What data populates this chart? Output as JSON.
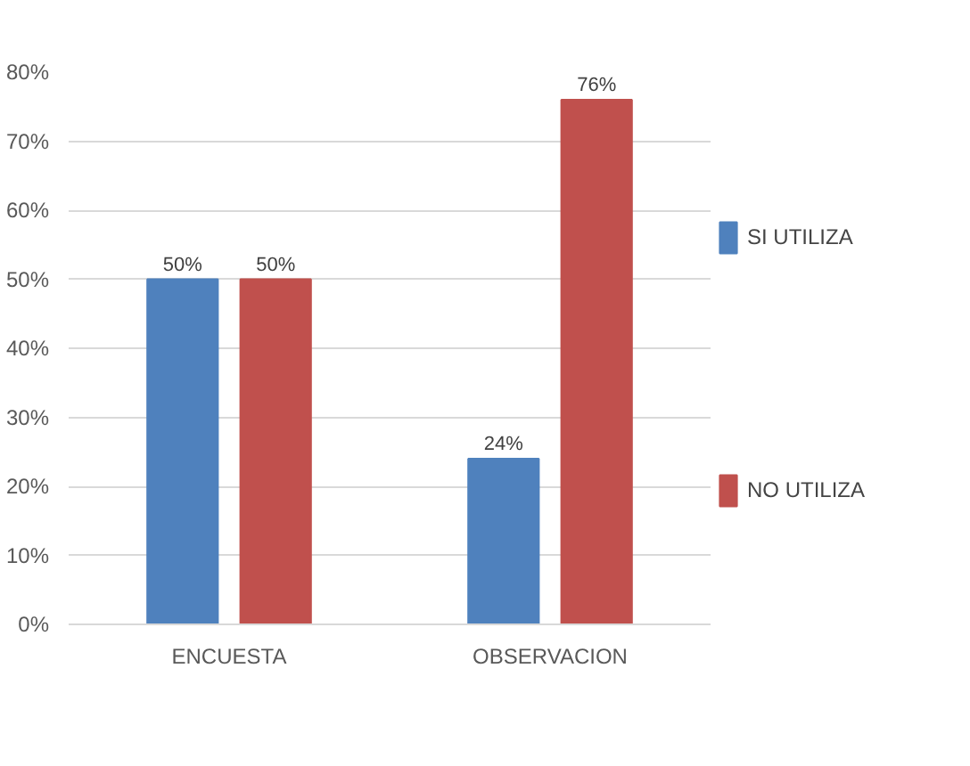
{
  "chart_data": {
    "type": "bar",
    "categories": [
      "ENCUESTA",
      "OBSERVACION"
    ],
    "series": [
      {
        "name": "SI UTILIZA",
        "color": "#4f81bd",
        "values": [
          50,
          24
        ],
        "value_labels": [
          "50%",
          "24%"
        ]
      },
      {
        "name": "NO UTILIZA",
        "color": "#c0504d",
        "values": [
          50,
          76
        ],
        "value_labels": [
          "50%",
          "76%"
        ]
      }
    ],
    "ylim": [
      0,
      80
    ],
    "yticks": [
      {
        "value": 0,
        "label": "0%"
      },
      {
        "value": 10,
        "label": "10%"
      },
      {
        "value": 20,
        "label": "20%"
      },
      {
        "value": 30,
        "label": "30%"
      },
      {
        "value": 40,
        "label": "40%"
      },
      {
        "value": 50,
        "label": "50%"
      },
      {
        "value": 60,
        "label": "60%"
      },
      {
        "value": 70,
        "label": "70%"
      },
      {
        "value": 80,
        "label": "80%"
      }
    ],
    "grid": "y",
    "legend": "right"
  }
}
